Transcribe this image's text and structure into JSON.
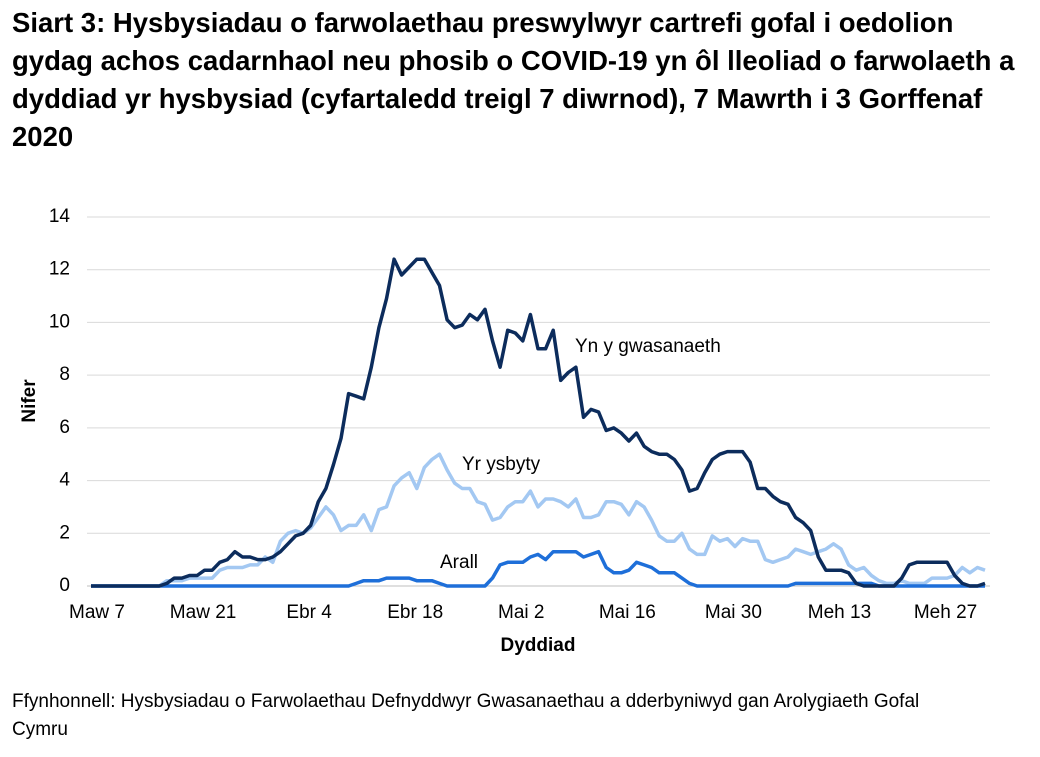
{
  "chart_data": {
    "type": "line",
    "title": "Siart 3: Hysbysiadau o farwolaethau preswylwyr cartrefi gofal i oedolion gydag achos cadarnhaol neu phosib o COVID-19 yn ôl lleoliad o farwolaeth a dyddiad yr hysbysiad (cyfartaledd treigl 7 diwrnod), 7 Mawrth i 3 Gorffenaf 2020",
    "x_label": "Dyddiad",
    "y_label": "Nifer",
    "source": "Ffynhonnell: Hysbysiadau o Farwolaethau Defnyddwyr Gwasanaethau a dderbyniwyd gan Arolygiaeth Gofal Cymru",
    "categories": [
      "Maw 7",
      null,
      null,
      null,
      null,
      null,
      null,
      null,
      null,
      null,
      null,
      null,
      null,
      null,
      "Maw 21",
      null,
      null,
      null,
      null,
      null,
      null,
      null,
      null,
      null,
      null,
      null,
      null,
      null,
      "Ebr 4",
      null,
      null,
      null,
      null,
      null,
      null,
      null,
      null,
      null,
      null,
      null,
      null,
      null,
      "Ebr 18",
      null,
      null,
      null,
      null,
      null,
      null,
      null,
      null,
      null,
      null,
      null,
      null,
      null,
      "Mai 2",
      null,
      null,
      null,
      null,
      null,
      null,
      null,
      null,
      null,
      null,
      null,
      null,
      null,
      "Mai 16",
      null,
      null,
      null,
      null,
      null,
      null,
      null,
      null,
      null,
      null,
      null,
      null,
      null,
      "Mai 30",
      null,
      null,
      null,
      null,
      null,
      null,
      null,
      null,
      null,
      null,
      null,
      null,
      null,
      "Meh 13",
      null,
      null,
      null,
      null,
      null,
      null,
      null,
      null,
      null,
      null,
      null,
      null,
      null,
      "Meh 27",
      null,
      null,
      null,
      null,
      null,
      null
    ],
    "series": [
      {
        "name": "Yn y gwasanaeth",
        "color": "#0c2c5c",
        "values": [
          0,
          0,
          0,
          0,
          0,
          0,
          0,
          0,
          0,
          0,
          0.1,
          0.3,
          0.3,
          0.4,
          0.4,
          0.6,
          0.6,
          0.9,
          1.0,
          1.3,
          1.1,
          1.1,
          1.0,
          1.0,
          1.1,
          1.3,
          1.6,
          1.9,
          2.0,
          2.3,
          3.2,
          3.7,
          4.6,
          5.6,
          7.3,
          7.2,
          7.1,
          8.3,
          9.8,
          10.9,
          12.4,
          11.8,
          12.1,
          12.4,
          12.4,
          11.9,
          11.4,
          10.1,
          9.8,
          9.9,
          10.3,
          10.1,
          10.5,
          9.3,
          8.3,
          9.7,
          9.6,
          9.3,
          10.3,
          9.0,
          9.0,
          9.7,
          7.8,
          8.1,
          8.3,
          6.4,
          6.7,
          6.6,
          5.9,
          6.0,
          5.8,
          5.5,
          5.8,
          5.3,
          5.1,
          5.0,
          5.0,
          4.8,
          4.4,
          3.6,
          3.7,
          4.3,
          4.8,
          5.0,
          5.1,
          5.1,
          5.1,
          4.7,
          3.7,
          3.7,
          3.4,
          3.2,
          3.1,
          2.6,
          2.4,
          2.1,
          1.1,
          0.6,
          0.6,
          0.6,
          0.5,
          0.1,
          0,
          0,
          0,
          0,
          0,
          0.3,
          0.8,
          0.9,
          0.9,
          0.9,
          0.9,
          0.9,
          0.4,
          0.1,
          0,
          0,
          0.1
        ]
      },
      {
        "name": "Yr ysbyty",
        "color": "#a3c8f2",
        "values": [
          0,
          0,
          0,
          0,
          0,
          0,
          0,
          0,
          0,
          0,
          0.2,
          0.2,
          0.2,
          0.3,
          0.3,
          0.3,
          0.3,
          0.6,
          0.7,
          0.7,
          0.7,
          0.8,
          0.8,
          1.1,
          0.9,
          1.7,
          2.0,
          2.1,
          2.0,
          2.2,
          2.6,
          3.0,
          2.7,
          2.1,
          2.3,
          2.3,
          2.7,
          2.1,
          2.9,
          3.0,
          3.8,
          4.1,
          4.3,
          3.7,
          4.5,
          4.8,
          5.0,
          4.4,
          3.9,
          3.7,
          3.7,
          3.2,
          3.1,
          2.5,
          2.6,
          3.0,
          3.2,
          3.2,
          3.6,
          3.0,
          3.3,
          3.3,
          3.2,
          3.0,
          3.3,
          2.6,
          2.6,
          2.7,
          3.2,
          3.2,
          3.1,
          2.7,
          3.2,
          3.0,
          2.5,
          1.9,
          1.7,
          1.7,
          2.0,
          1.4,
          1.2,
          1.2,
          1.9,
          1.7,
          1.8,
          1.5,
          1.8,
          1.7,
          1.7,
          1.0,
          0.9,
          1.0,
          1.1,
          1.4,
          1.3,
          1.2,
          1.3,
          1.4,
          1.6,
          1.4,
          0.8,
          0.6,
          0.7,
          0.4,
          0.2,
          0.1,
          0.1,
          0.2,
          0.1,
          0.1,
          0.1,
          0.3,
          0.3,
          0.3,
          0.4,
          0.7,
          0.5,
          0.7,
          0.6
        ]
      },
      {
        "name": "Arall",
        "color": "#1e6fd9",
        "values": [
          0,
          0,
          0,
          0,
          0,
          0,
          0,
          0,
          0,
          0,
          0,
          0,
          0,
          0,
          0,
          0,
          0,
          0,
          0,
          0,
          0,
          0,
          0,
          0,
          0,
          0,
          0,
          0,
          0,
          0,
          0,
          0,
          0,
          0,
          0,
          0.1,
          0.2,
          0.2,
          0.2,
          0.3,
          0.3,
          0.3,
          0.3,
          0.2,
          0.2,
          0.2,
          0.1,
          0,
          0,
          0,
          0,
          0,
          0,
          0.3,
          0.8,
          0.9,
          0.9,
          0.9,
          1.1,
          1.2,
          1.0,
          1.3,
          1.3,
          1.3,
          1.3,
          1.1,
          1.2,
          1.3,
          0.7,
          0.5,
          0.5,
          0.6,
          0.9,
          0.8,
          0.7,
          0.5,
          0.5,
          0.5,
          0.3,
          0.1,
          0,
          0,
          0,
          0,
          0,
          0,
          0,
          0,
          0,
          0,
          0,
          0,
          0,
          0.1,
          0.1,
          0.1,
          0.1,
          0.1,
          0.1,
          0.1,
          0.1,
          0.1,
          0.1,
          0.1,
          0,
          0,
          0,
          0,
          0,
          0,
          0,
          0,
          0,
          0,
          0,
          0,
          0,
          0,
          0
        ]
      }
    ],
    "ylim": [
      0,
      14
    ],
    "yticks": [
      0,
      2,
      4,
      6,
      8,
      10,
      12,
      14
    ],
    "grid": true
  }
}
